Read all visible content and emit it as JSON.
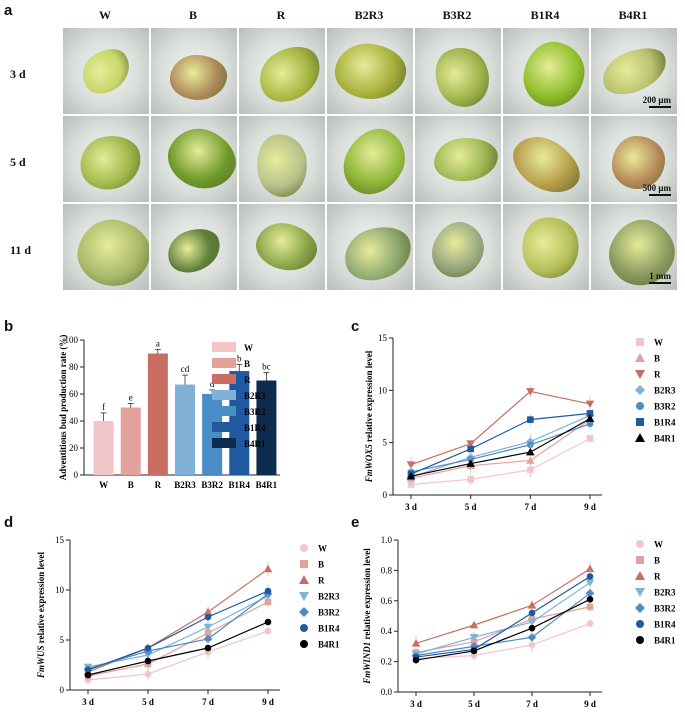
{
  "figure": {
    "panel_labels": {
      "a": "a",
      "b": "b",
      "c": "c",
      "d": "d",
      "e": "e"
    },
    "columns": [
      "W",
      "B",
      "R",
      "B2R3",
      "B3R2",
      "B1R4",
      "B4R1"
    ],
    "rows": [
      "3 d",
      "5 d",
      "11 d"
    ],
    "scale_bars": [
      "200 μm",
      "500 μm",
      "1 mm"
    ]
  },
  "chart_data": [
    {
      "panel": "b",
      "type": "bar",
      "ylabel": "Adventitious bud production rate (%)",
      "categories": [
        "W",
        "B",
        "R",
        "B2R3",
        "B3R2",
        "B1R4",
        "B4R1"
      ],
      "values": [
        40,
        50,
        90,
        67,
        60,
        77,
        70
      ],
      "errors": [
        6,
        3,
        3,
        7,
        3,
        5,
        6
      ],
      "letters": [
        "f",
        "e",
        "a",
        "cd",
        "d",
        "b",
        "bc"
      ],
      "colors": [
        "#f2c6c9",
        "#e3a19c",
        "#c96e63",
        "#7fb1d9",
        "#4a8cc6",
        "#1f5aa0",
        "#0d2a4f"
      ],
      "ylim": [
        0,
        100
      ],
      "yticks": [
        0,
        20,
        40,
        60,
        80,
        100
      ]
    },
    {
      "panel": "c",
      "type": "line",
      "ylabel_italic": "FmWOX5",
      "ylabel_rest": " relative expression level",
      "x": [
        "3 d",
        "5 d",
        "7 d",
        "9 d"
      ],
      "ylim": [
        0,
        15
      ],
      "yticks": [
        0,
        5,
        10,
        15
      ],
      "series": [
        {
          "name": "W",
          "values": [
            1.0,
            1.5,
            2.4,
            5.4
          ],
          "color": "#f2c6c9",
          "marker": "square"
        },
        {
          "name": "B",
          "values": [
            1.6,
            2.8,
            3.3,
            7.2
          ],
          "color": "#e3a19c",
          "marker": "triangle-up"
        },
        {
          "name": "R",
          "values": [
            2.9,
            4.9,
            9.9,
            8.7
          ],
          "color": "#c96e63",
          "marker": "triangle-down"
        },
        {
          "name": "B2R3",
          "values": [
            1.7,
            3.6,
            5.1,
            7.6
          ],
          "color": "#7fb1d9",
          "marker": "diamond"
        },
        {
          "name": "B3R2",
          "values": [
            2.2,
            3.4,
            4.8,
            6.8
          ],
          "color": "#4a8cc6",
          "marker": "circle"
        },
        {
          "name": "B1R4",
          "values": [
            2.0,
            4.4,
            7.2,
            7.8
          ],
          "color": "#1f5aa0",
          "marker": "square"
        },
        {
          "name": "B4R1",
          "values": [
            1.8,
            3.0,
            4.1,
            7.3
          ],
          "color": "#000000",
          "marker": "triangle-up"
        }
      ]
    },
    {
      "panel": "d",
      "type": "line",
      "ylabel_italic": "FmWUS",
      "ylabel_rest": " relative expression level",
      "x": [
        "3 d",
        "5 d",
        "7 d",
        "9 d"
      ],
      "ylim": [
        0,
        15
      ],
      "yticks": [
        0,
        5,
        10,
        15
      ],
      "series": [
        {
          "name": "W",
          "values": [
            1.0,
            1.6,
            3.8,
            5.9
          ],
          "color": "#f2c6c9",
          "marker": "circle"
        },
        {
          "name": "B",
          "values": [
            1.4,
            2.6,
            5.7,
            8.8
          ],
          "color": "#e3a19c",
          "marker": "square"
        },
        {
          "name": "R",
          "values": [
            1.8,
            4.2,
            7.8,
            12.1
          ],
          "color": "#c96e63",
          "marker": "triangle-up"
        },
        {
          "name": "B2R3",
          "values": [
            2.3,
            3.5,
            6.3,
            9.4
          ],
          "color": "#7fb1d9",
          "marker": "triangle-down"
        },
        {
          "name": "B3R2",
          "values": [
            2.1,
            3.9,
            5.1,
            9.6
          ],
          "color": "#4a8cc6",
          "marker": "diamond"
        },
        {
          "name": "B1R4",
          "values": [
            2.0,
            4.2,
            7.3,
            9.9
          ],
          "color": "#1f5aa0",
          "marker": "circle"
        },
        {
          "name": "B4R1",
          "values": [
            1.5,
            2.9,
            4.2,
            6.8
          ],
          "color": "#000000",
          "marker": "circle"
        }
      ]
    },
    {
      "panel": "e",
      "type": "line",
      "ylabel_italic": "FmWIND1",
      "ylabel_rest": " relative expression level",
      "x": [
        "3 d",
        "5 d",
        "7 d",
        "9 d"
      ],
      "ylim": [
        0,
        1.0
      ],
      "yticks": [
        0.0,
        0.2,
        0.4,
        0.6,
        0.8,
        1.0
      ],
      "series": [
        {
          "name": "W",
          "values": [
            0.22,
            0.24,
            0.31,
            0.45
          ],
          "color": "#f2c6c9",
          "marker": "circle"
        },
        {
          "name": "B",
          "values": [
            0.26,
            0.33,
            0.48,
            0.56
          ],
          "color": "#e3a19c",
          "marker": "square"
        },
        {
          "name": "R",
          "values": [
            0.32,
            0.44,
            0.57,
            0.81
          ],
          "color": "#c96e63",
          "marker": "triangle-up"
        },
        {
          "name": "B2R3",
          "values": [
            0.25,
            0.36,
            0.46,
            0.72
          ],
          "color": "#7fb1d9",
          "marker": "triangle-down"
        },
        {
          "name": "B3R2",
          "values": [
            0.24,
            0.3,
            0.36,
            0.65
          ],
          "color": "#4a8cc6",
          "marker": "diamond"
        },
        {
          "name": "B1R4",
          "values": [
            0.23,
            0.28,
            0.52,
            0.76
          ],
          "color": "#1f5aa0",
          "marker": "circle"
        },
        {
          "name": "B4R1",
          "values": [
            0.21,
            0.27,
            0.42,
            0.61
          ],
          "color": "#000000",
          "marker": "circle"
        }
      ]
    }
  ]
}
